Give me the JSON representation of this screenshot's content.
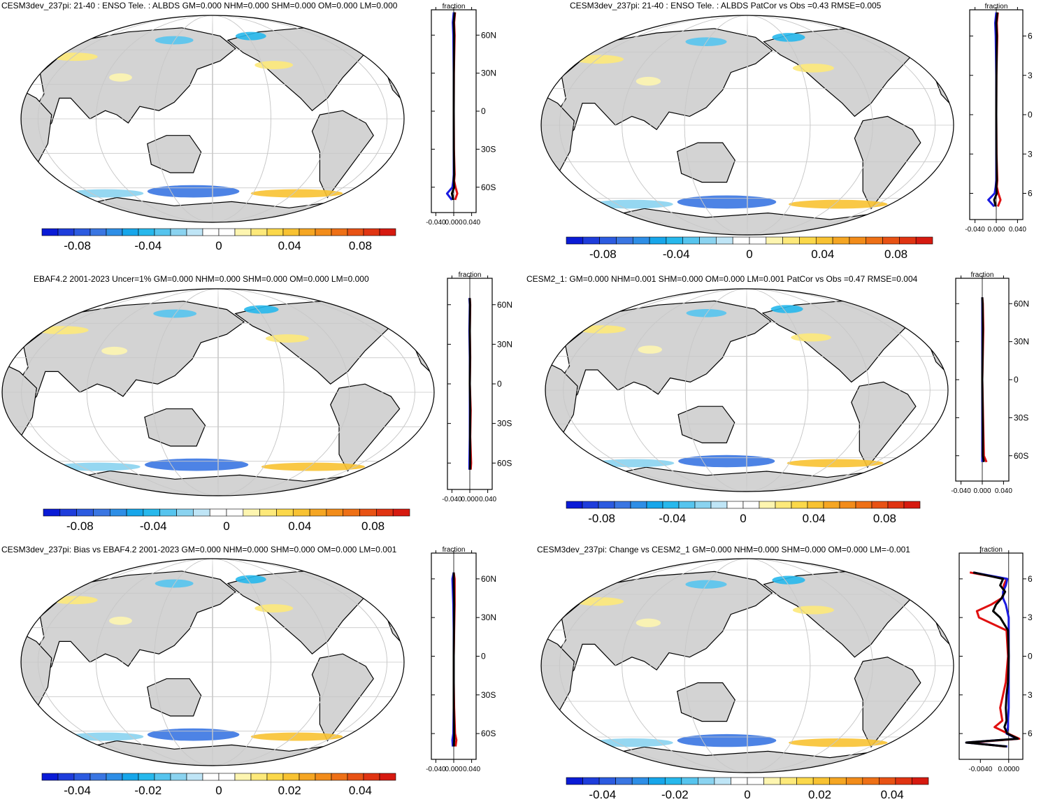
{
  "panels": [
    {
      "title": "CESM3dev_237pi: 21-40 : ENSO Tele. : ALBDS GM=0.000 NHM=0.000 SHM=0.000 OM=0.000 LM=0.000",
      "colorbar_ticks": [
        "-0.08",
        "-0.04",
        "0",
        "0.04",
        "0.08"
      ],
      "profile": {
        "header": "fraction",
        "x_ticks": [
          "-0.040",
          "0.000",
          "0.040"
        ],
        "lat_labels": [
          "60N",
          "30N",
          "0",
          "30S",
          "60S"
        ]
      }
    },
    {
      "title": "CESM3dev_237pi: 21-40 : ENSO Tele. : ALBDS PatCor vs Obs =0.43 RMSE=0.005",
      "colorbar_ticks": [
        "-0.08",
        "-0.04",
        "0",
        "0.04",
        "0.08"
      ],
      "profile": {
        "header": "fraction",
        "x_ticks": [
          "-0.040",
          "0.000",
          "0.040"
        ],
        "lat_labels": [
          "6",
          "3",
          "0",
          "3",
          "6"
        ]
      }
    },
    {
      "title": "EBAF4.2 2001-2023 Uncer=1% GM=0.000 NHM=0.000 SHM=0.000 OM=0.000 LM=0.000",
      "colorbar_ticks": [
        "-0.08",
        "-0.04",
        "0",
        "0.04",
        "0.08"
      ],
      "profile": {
        "header": "fraction",
        "x_ticks": [
          "-0.040",
          "0.000",
          "0.040"
        ],
        "lat_labels": [
          "60N",
          "30N",
          "0",
          "30S",
          "60S"
        ]
      }
    },
    {
      "title": "CESM2_1: GM=0.000 NHM=0.001 SHM=0.000 OM=0.000 LM=0.001 PatCor vs Obs =0.47 RMSE=0.004",
      "colorbar_ticks": [
        "-0.08",
        "-0.04",
        "0",
        "0.04",
        "0.08"
      ],
      "profile": {
        "header": "fraction",
        "x_ticks": [
          "-0.040",
          "0.000",
          "0.040"
        ],
        "lat_labels": [
          "60N",
          "30N",
          "0",
          "30S",
          "60S"
        ]
      }
    },
    {
      "title": "CESM3dev_237pi: Bias vs EBAF4.2 2001-2023 GM=0.000 NHM=0.000 SHM=0.000 OM=0.000 LM=0.001",
      "colorbar_ticks": [
        "-0.04",
        "-0.02",
        "0",
        "0.02",
        "0.04"
      ],
      "profile": {
        "header": "fraction",
        "x_ticks": [
          "-0.040",
          "0.000",
          "0.040"
        ],
        "lat_labels": [
          "60N",
          "30N",
          "0",
          "30S",
          "60S"
        ]
      }
    },
    {
      "title": "CESM3dev_237pi: Change vs CESM2_1 GM=0.000 NHM=0.000 SHM=0.000 OM=0.000 LM=-0.001",
      "colorbar_ticks": [
        "-0.04",
        "-0.02",
        "0",
        "0.02",
        "0.04"
      ],
      "profile": {
        "header": "fraction",
        "x_ticks": [
          "-0.0040",
          "0.0000"
        ],
        "lat_labels": [
          "6",
          "3",
          "0",
          "3",
          "6"
        ]
      }
    }
  ],
  "colors": {
    "land": "#d3d3d3",
    "coast": "#000000",
    "grid": "#c8c8c8",
    "colorbar": [
      "#0a1bd6",
      "#1e3ddb",
      "#2c5be0",
      "#3a76e2",
      "#2e8ee6",
      "#17a6ea",
      "#27b8ec",
      "#56c4ee",
      "#8ad3f0",
      "#bfe5f6",
      "#ffffff",
      "#ffffff",
      "#fdf5b0",
      "#fde97a",
      "#fbd84a",
      "#f8c232",
      "#f5a623",
      "#f28c1a",
      "#ee7016",
      "#e85214",
      "#e03412",
      "#d61a10"
    ],
    "profile_series": [
      "#e01010",
      "#1a1ae0",
      "#000000"
    ]
  },
  "chart_data": [
    {
      "type": "heatmap",
      "title": "CESM3dev_237pi: 21-40 : ENSO Tele. : ALBDS GM=0.000 NHM=0.000 SHM=0.000 OM=0.000 LM=0.000",
      "colorbar_range": [
        -0.1,
        0.1
      ],
      "colorbar_ticks": [
        -0.08,
        -0.04,
        0,
        0.04,
        0.08
      ],
      "profile": {
        "type": "line",
        "xlim": [
          -0.05,
          0.05
        ],
        "ylim": [
          -80,
          80
        ],
        "lat": [
          -70,
          -65,
          -60,
          -55,
          -50,
          -30,
          0,
          30,
          60,
          70,
          78
        ],
        "series": [
          {
            "values": [
              0.003,
              0.008,
              0.004,
              0.001,
              0.002,
              0.0005,
              0.0,
              0.0003,
              0.002,
              0.001,
              0.003
            ]
          },
          {
            "values": [
              -0.004,
              -0.015,
              -0.003,
              -0.001,
              0.0,
              0.0,
              0.0,
              0.0,
              -0.001,
              -0.002,
              0.0
            ]
          },
          {
            "values": [
              -0.001,
              -0.004,
              0.001,
              0.0,
              0.001,
              0.0002,
              0.0,
              0.0002,
              0.001,
              0.0,
              0.002
            ]
          }
        ]
      }
    },
    {
      "type": "heatmap",
      "title": "CESM3dev_237pi: 21-40 : ENSO Tele. : ALBDS PatCor vs Obs =0.43 RMSE=0.005",
      "colorbar_range": [
        -0.1,
        0.1
      ],
      "colorbar_ticks": [
        -0.08,
        -0.04,
        0,
        0.04,
        0.08
      ],
      "profile": {
        "type": "line",
        "xlim": [
          -0.05,
          0.05
        ],
        "ylim": [
          -80,
          80
        ],
        "lat": [
          -70,
          -65,
          -60,
          -55,
          -50,
          -30,
          0,
          30,
          60,
          70,
          78
        ],
        "series": [
          {
            "values": [
              0.003,
              0.008,
              0.004,
              0.001,
              0.002,
              0.0005,
              0.0,
              0.0003,
              0.002,
              0.001,
              0.003
            ]
          },
          {
            "values": [
              -0.004,
              -0.015,
              -0.003,
              -0.001,
              0.0,
              0.0,
              0.0,
              0.0,
              -0.001,
              -0.002,
              0.0
            ]
          },
          {
            "values": [
              -0.001,
              -0.004,
              0.001,
              0.0,
              0.001,
              0.0002,
              0.0,
              0.0002,
              0.001,
              0.0,
              0.002
            ]
          }
        ]
      }
    },
    {
      "type": "heatmap",
      "title": "EBAF4.2 2001-2023 Uncer=1% GM=0.000 NHM=0.000 SHM=0.000 OM=0.000 LM=0.000",
      "colorbar_range": [
        -0.1,
        0.1
      ],
      "colorbar_ticks": [
        -0.08,
        -0.04,
        0,
        0.04,
        0.08
      ],
      "profile": {
        "type": "line",
        "xlim": [
          -0.05,
          0.05
        ],
        "ylim": [
          -80,
          80
        ],
        "lat": [
          -65,
          -60,
          -40,
          -20,
          0,
          20,
          40,
          60,
          65
        ],
        "series": [
          {
            "values": [
              0.002,
              0.003,
              0.001,
              0.002,
              0.0,
              0.001,
              0.0,
              0.001,
              0.0
            ]
          },
          {
            "values": [
              -0.001,
              -0.001,
              0.0,
              0.0,
              0.0,
              0.0,
              -0.001,
              0.0,
              -0.001
            ]
          },
          {
            "values": [
              0.0005,
              0.001,
              0.0005,
              0.001,
              0.0,
              0.0005,
              0.0,
              0.0005,
              0.0
            ]
          }
        ]
      }
    },
    {
      "type": "heatmap",
      "title": "CESM2_1: GM=0.000 NHM=0.001 SHM=0.000 OM=0.000 LM=0.001 PatCor vs Obs =0.47 RMSE=0.004",
      "colorbar_range": [
        -0.1,
        0.1
      ],
      "colorbar_ticks": [
        -0.08,
        -0.04,
        0,
        0.04,
        0.08
      ],
      "profile": {
        "type": "line",
        "xlim": [
          -0.05,
          0.05
        ],
        "ylim": [
          -80,
          80
        ],
        "lat": [
          -65,
          -60,
          -40,
          -20,
          0,
          20,
          40,
          60,
          65
        ],
        "series": [
          {
            "values": [
              0.008,
              0.003,
              0.002,
              0.001,
              0.0,
              0.001,
              0.002,
              0.001,
              0.0
            ]
          },
          {
            "values": [
              0.0,
              0.0,
              0.0,
              0.0,
              0.0,
              0.0,
              0.0,
              0.0,
              0.0
            ]
          },
          {
            "values": [
              0.003,
              0.001,
              0.001,
              0.0005,
              0.0,
              0.0005,
              0.001,
              0.0005,
              0.0
            ]
          }
        ]
      }
    },
    {
      "type": "heatmap",
      "title": "CESM3dev_237pi: Bias vs EBAF4.2 2001-2023 GM=0.000 NHM=0.000 SHM=0.000 OM=0.000 LM=0.001",
      "colorbar_range": [
        -0.05,
        0.05
      ],
      "colorbar_ticks": [
        -0.04,
        -0.02,
        0,
        0.02,
        0.04
      ],
      "profile": {
        "type": "line",
        "xlim": [
          -0.05,
          0.05
        ],
        "ylim": [
          -80,
          80
        ],
        "lat": [
          -70,
          -65,
          -60,
          -40,
          -20,
          0,
          20,
          40,
          60,
          65
        ],
        "series": [
          {
            "values": [
              0.004,
              0.006,
              0.003,
              0.001,
              0.0,
              0.0,
              0.001,
              0.002,
              0.002,
              0.0
            ]
          },
          {
            "values": [
              -0.002,
              -0.003,
              -0.001,
              0.0,
              0.0,
              0.0,
              0.0,
              -0.001,
              -0.003,
              0.0
            ]
          },
          {
            "values": [
              0.0,
              0.001,
              0.001,
              0.0,
              0.0,
              0.0,
              0.0005,
              0.001,
              0.0,
              0.0
            ]
          }
        ]
      }
    },
    {
      "type": "heatmap",
      "title": "CESM3dev_237pi: Change vs CESM2_1 GM=0.000 NHM=0.000 SHM=0.000 OM=0.000 LM=-0.001",
      "colorbar_range": [
        -0.05,
        0.05
      ],
      "colorbar_ticks": [
        -0.04,
        -0.02,
        0,
        0.02,
        0.04
      ],
      "profile": {
        "type": "line",
        "xlim": [
          -0.007,
          0.002
        ],
        "ylim": [
          -80,
          80
        ],
        "lat": [
          -70,
          -67,
          -64,
          -60,
          -55,
          -50,
          -40,
          -30,
          -20,
          0,
          20,
          30,
          35,
          40,
          45,
          50,
          55,
          60,
          65
        ],
        "series": [
          {
            "values": [
              -0.0005,
              -0.0055,
              0.0015,
              -0.0001,
              -0.002,
              -0.0009,
              -0.0012,
              -0.0008,
              -0.0004,
              -0.0001,
              -0.0003,
              -0.0042,
              -0.0045,
              -0.0025,
              -0.001,
              -0.0006,
              -0.0007,
              -0.0003,
              -0.0055
            ]
          },
          {
            "values": [
              -0.0002,
              -0.006,
              0.0012,
              -0.0003,
              -0.0001,
              -0.0001,
              0.0,
              0.0,
              0.0,
              0.0,
              0.0,
              0.0,
              -0.0002,
              -0.0004,
              -0.0008,
              -0.0008,
              -0.0004,
              -0.0002,
              -0.005
            ]
          },
          {
            "values": [
              -0.0003,
              -0.006,
              0.0013,
              -0.0002,
              -0.0006,
              -0.0003,
              -0.0004,
              -0.0003,
              -0.0001,
              0.0,
              -0.0001,
              -0.0012,
              -0.0022,
              -0.0018,
              -0.001,
              -0.0005,
              -0.0012,
              -0.0008,
              -0.005
            ]
          }
        ]
      }
    }
  ]
}
